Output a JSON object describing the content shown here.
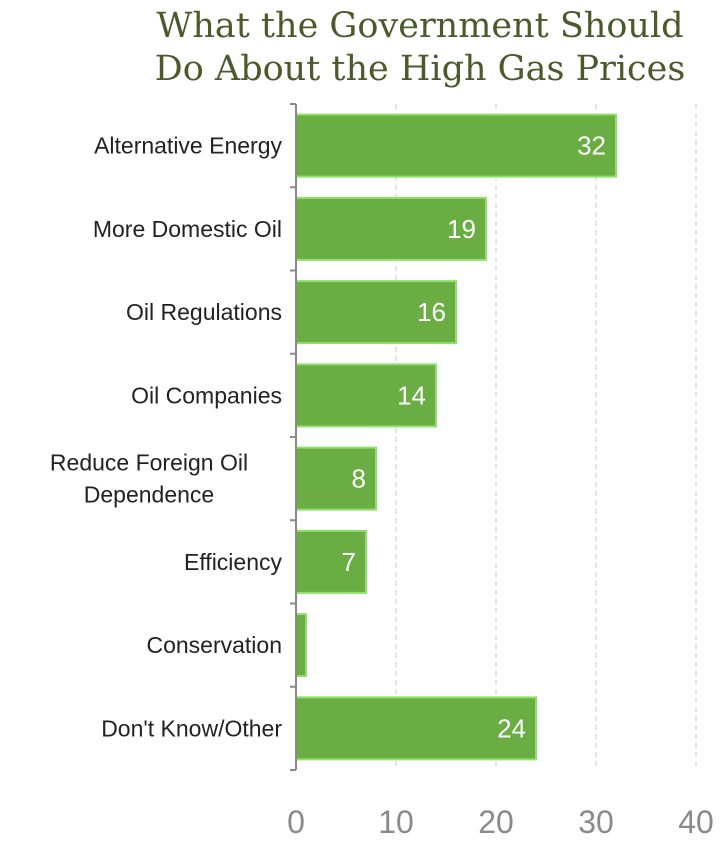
{
  "chart_data": {
    "type": "bar",
    "orientation": "horizontal",
    "title": "What the Government Should Do About the High Gas Prices",
    "title_lines": [
      "What the Government Should",
      "Do About the High Gas Prices"
    ],
    "categories": [
      "Alternative Energy",
      "More Domestic Oil",
      "Oil Regulations",
      "Oil Companies",
      "Reduce Foreign Oil Dependence",
      "Efficiency",
      "Conservation",
      "Don't Know/Other"
    ],
    "category_lines": [
      [
        "Alternative Energy"
      ],
      [
        "More Domestic Oil"
      ],
      [
        "Oil Regulations"
      ],
      [
        "Oil Companies"
      ],
      [
        "Reduce Foreign Oil",
        "Dependence"
      ],
      [
        "Efficiency"
      ],
      [
        "Conservation"
      ],
      [
        "Don't Know/Other"
      ]
    ],
    "values": [
      32,
      19,
      16,
      14,
      8,
      7,
      1,
      24
    ],
    "data_labels": [
      "32",
      "19",
      "16",
      "14",
      "8",
      "7",
      "",
      "24"
    ],
    "xlim": [
      0,
      40
    ],
    "ticks": [
      0,
      10,
      20,
      30,
      40
    ],
    "tick_labels": [
      "0",
      "10",
      "20",
      "30",
      "40"
    ],
    "xlabel": "",
    "ylabel": "",
    "grid": "vertical-dashed",
    "legend": "none",
    "colors": {
      "bar_fill": "#6aad42",
      "bar_stroke": "#8fe06a",
      "title": "#4a5a2a",
      "grid": "#c8c8c8",
      "axis": "#888888"
    }
  }
}
